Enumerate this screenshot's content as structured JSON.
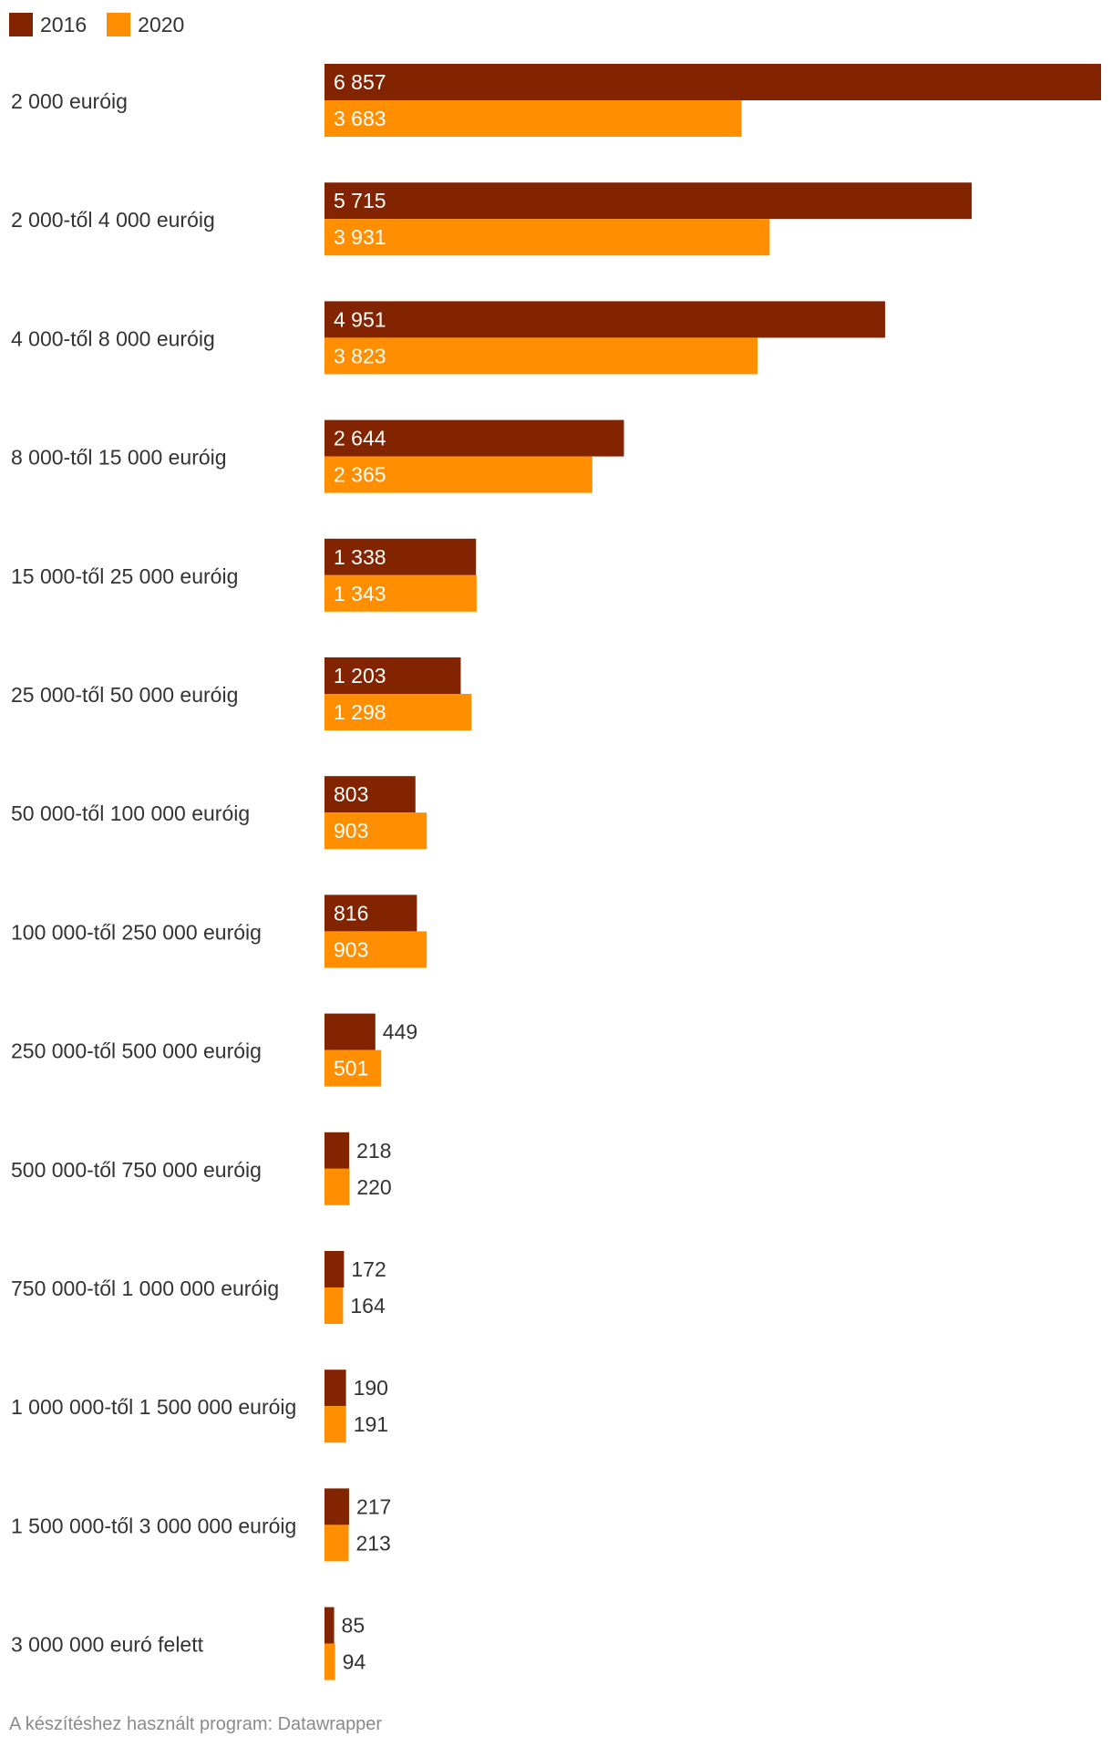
{
  "chart_data": {
    "type": "bar",
    "orientation": "horizontal",
    "grouped": true,
    "categories": [
      "2 000 euróig",
      "2 000-től 4 000 euróig",
      "4 000-től 8 000 euróig",
      "8 000-től 15 000 euróig",
      "15 000-től 25 000 euróig",
      "25 000-től 50 000 euróig",
      "50 000-től 100 000 euróig",
      "100 000-től 250 000 euróig",
      "250 000-től 500 000 euróig",
      "500 000-től 750 000 euróig",
      "750 000-től 1 000 000 euróig",
      "1 000 000-től 1 500 000 euróig",
      "1 500 000-től 3 000 000 euróig",
      "3 000 000 euró felett"
    ],
    "series": [
      {
        "name": "2016",
        "color": "#832400",
        "values": [
          6857,
          5715,
          4951,
          2644,
          1338,
          1203,
          803,
          816,
          449,
          218,
          172,
          190,
          217,
          85
        ],
        "labels": [
          "6 857",
          "5 715",
          "4 951",
          "2 644",
          "1 338",
          "1 203",
          "803",
          "816",
          "449",
          "218",
          "172",
          "190",
          "217",
          "85"
        ]
      },
      {
        "name": "2020",
        "color": "#ff8f00",
        "values": [
          3683,
          3931,
          3823,
          2365,
          1343,
          1298,
          903,
          903,
          501,
          220,
          164,
          191,
          213,
          94
        ],
        "labels": [
          "3 683",
          "3 931",
          "3 823",
          "2 365",
          "1 343",
          "1 298",
          "903",
          "903",
          "501",
          "220",
          "164",
          "191",
          "213",
          "94"
        ]
      }
    ],
    "xlim": [
      0,
      6857
    ],
    "grid": false,
    "legend_position": "top-left",
    "title": "",
    "xlabel": "",
    "ylabel": ""
  },
  "footer": {
    "note": "A készítéshez használt program: Datawrapper"
  }
}
